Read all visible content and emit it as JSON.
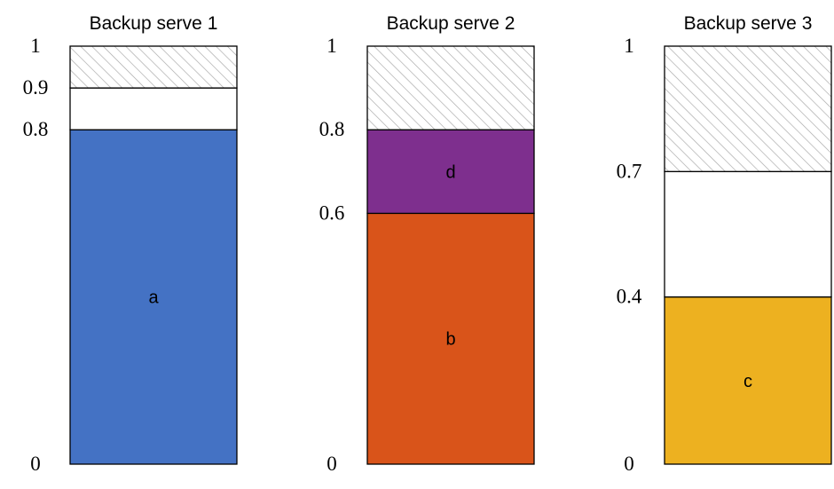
{
  "servers": [
    {
      "title": "Backup serve 1",
      "ticks": [
        "0",
        "0.8",
        "0.9",
        "1"
      ],
      "segments": [
        {
          "label": "a",
          "from": 0,
          "to": 0.8,
          "fill": "#4472C4"
        },
        {
          "label": "",
          "from": 0.8,
          "to": 0.9,
          "fill": "#FFFFFF"
        },
        {
          "label": "",
          "from": 0.9,
          "to": 1.0,
          "fill": "hatch"
        }
      ]
    },
    {
      "title": "Backup serve 2",
      "ticks": [
        "0",
        "0.6",
        "0.8",
        "1"
      ],
      "segments": [
        {
          "label": "b",
          "from": 0,
          "to": 0.6,
          "fill": "#D9541A"
        },
        {
          "label": "d",
          "from": 0.6,
          "to": 0.8,
          "fill": "#7E2F8E"
        },
        {
          "label": "",
          "from": 0.8,
          "to": 1.0,
          "fill": "hatch"
        }
      ]
    },
    {
      "title": "Backup serve 3",
      "ticks": [
        "0",
        "0.4",
        "0.7",
        "1"
      ],
      "segments": [
        {
          "label": "c",
          "from": 0,
          "to": 0.4,
          "fill": "#EDB120"
        },
        {
          "label": "",
          "from": 0.4,
          "to": 0.7,
          "fill": "#FFFFFF"
        },
        {
          "label": "",
          "from": 0.7,
          "to": 1.0,
          "fill": "hatch"
        }
      ]
    }
  ],
  "colors": {
    "outline": "#000000",
    "hatch_stroke": "#A6A6A6"
  }
}
